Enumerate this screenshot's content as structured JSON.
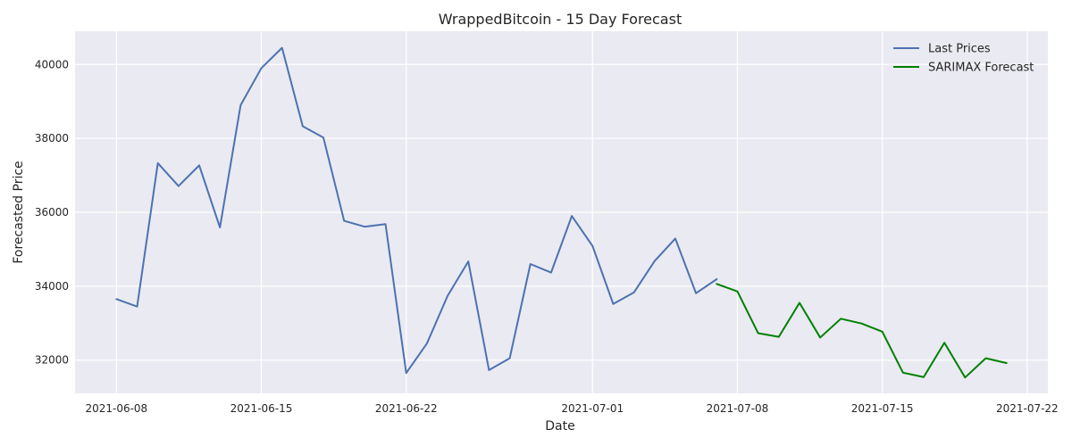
{
  "chart_data": {
    "type": "line",
    "title": "WrappedBitcoin - 15 Day Forecast",
    "xlabel": "Date",
    "ylabel": "Forecasted Price",
    "xlim": [
      "2021-06-06",
      "2021-07-23"
    ],
    "ylim": [
      31100,
      40900
    ],
    "x_ticks": [
      "2021-06-08",
      "2021-06-15",
      "2021-06-22",
      "2021-07-01",
      "2021-07-08",
      "2021-07-15",
      "2021-07-22"
    ],
    "y_ticks": [
      32000,
      34000,
      36000,
      38000,
      40000
    ],
    "grid": true,
    "legend_position": "top-right",
    "background": "#eaeaf2",
    "series": [
      {
        "name": "Last Prices",
        "color": "#4c72b0",
        "points": [
          [
            "2021-06-08",
            33650
          ],
          [
            "2021-06-09",
            33450
          ],
          [
            "2021-06-10",
            37330
          ],
          [
            "2021-06-11",
            36710
          ],
          [
            "2021-06-12",
            37270
          ],
          [
            "2021-06-13",
            35590
          ],
          [
            "2021-06-14",
            38900
          ],
          [
            "2021-06-15",
            39900
          ],
          [
            "2021-06-16",
            40450
          ],
          [
            "2021-06-17",
            38330
          ],
          [
            "2021-06-18",
            38020
          ],
          [
            "2021-06-19",
            35770
          ],
          [
            "2021-06-20",
            35610
          ],
          [
            "2021-06-21",
            35680
          ],
          [
            "2021-06-22",
            31650
          ],
          [
            "2021-06-23",
            32450
          ],
          [
            "2021-06-24",
            33740
          ],
          [
            "2021-06-25",
            34670
          ],
          [
            "2021-06-26",
            31730
          ],
          [
            "2021-06-27",
            32050
          ],
          [
            "2021-06-28",
            34600
          ],
          [
            "2021-06-29",
            34370
          ],
          [
            "2021-06-30",
            35900
          ],
          [
            "2021-07-01",
            35090
          ],
          [
            "2021-07-02",
            33520
          ],
          [
            "2021-07-03",
            33830
          ],
          [
            "2021-07-04",
            34680
          ],
          [
            "2021-07-05",
            35290
          ],
          [
            "2021-07-06",
            33810
          ],
          [
            "2021-07-07",
            34190
          ]
        ]
      },
      {
        "name": "SARIMAX Forecast",
        "color": "#008000",
        "points": [
          [
            "2021-07-07",
            34060
          ],
          [
            "2021-07-08",
            33860
          ],
          [
            "2021-07-09",
            32730
          ],
          [
            "2021-07-10",
            32630
          ],
          [
            "2021-07-11",
            33550
          ],
          [
            "2021-07-12",
            32610
          ],
          [
            "2021-07-13",
            33120
          ],
          [
            "2021-07-14",
            32990
          ],
          [
            "2021-07-15",
            32770
          ],
          [
            "2021-07-16",
            31660
          ],
          [
            "2021-07-17",
            31540
          ],
          [
            "2021-07-18",
            32470
          ],
          [
            "2021-07-19",
            31530
          ],
          [
            "2021-07-20",
            32050
          ],
          [
            "2021-07-21",
            31920
          ]
        ]
      }
    ]
  }
}
